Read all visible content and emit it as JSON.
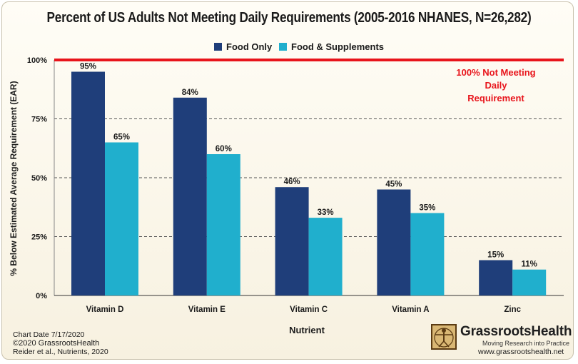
{
  "chart_data": {
    "type": "bar",
    "title": "Percent of US Adults Not Meeting Daily Requirements (2005-2016 NHANES, N=26,282)",
    "xlabel": "Nutrient",
    "ylabel": "% Below Estimated Average Requirement (EAR)",
    "categories": [
      "Vitamin D",
      "Vitamin E",
      "Vitamin C",
      "Vitamin A",
      "Zinc"
    ],
    "series": [
      {
        "name": "Food Only",
        "values": [
          95,
          84,
          46,
          45,
          15
        ],
        "labels": [
          "95%",
          "84%",
          "46%",
          "45%",
          "15%"
        ],
        "color": "#1f3e7a"
      },
      {
        "name": "Food & Supplements",
        "values": [
          65,
          60,
          33,
          35,
          11
        ],
        "labels": [
          "65%",
          "60%",
          "33%",
          "35%",
          "11%"
        ],
        "color": "#20afcd"
      }
    ],
    "ylim": [
      0,
      100
    ],
    "yticks": [
      0,
      25,
      50,
      75,
      100
    ],
    "ytick_labels": [
      "0%",
      "25%",
      "50%",
      "75%",
      "100%"
    ],
    "grid": true,
    "legend_position": "top",
    "threshold": {
      "value": 100,
      "label_line1": "100% Not Meeting Daily",
      "label_line2": "Requirement",
      "color": "#e8141b"
    }
  },
  "footer": {
    "chart_date": "Chart Date 7/17/2020",
    "copyright": "©2020 GrassrootsHealth",
    "citation": "Reider et al., Nutrients, 2020"
  },
  "brand": {
    "name": "GrassrootsHealth",
    "tagline": "Moving Research into Practice",
    "url": "www.grassrootshealth.net"
  }
}
